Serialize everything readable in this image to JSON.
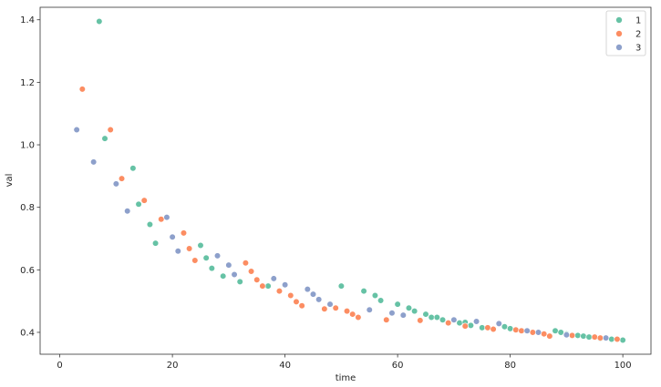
{
  "chart_data": {
    "type": "scatter",
    "xlabel": "time",
    "ylabel": "val",
    "xlim": [
      -3.5,
      105
    ],
    "ylim": [
      0.33,
      1.44
    ],
    "xticks": [
      0,
      20,
      40,
      60,
      80,
      100
    ],
    "yticks": [
      0.4,
      0.6,
      0.8,
      1.0,
      1.2,
      1.4
    ],
    "grid": false,
    "legend_position": "top-right",
    "series": [
      {
        "name": "1",
        "color": "#66c2a5",
        "points": [
          [
            7,
            1.395
          ],
          [
            8,
            1.02
          ],
          [
            13,
            0.925
          ],
          [
            14,
            0.81
          ],
          [
            16,
            0.745
          ],
          [
            17,
            0.685
          ],
          [
            25,
            0.678
          ],
          [
            26,
            0.638
          ],
          [
            27,
            0.605
          ],
          [
            29,
            0.58
          ],
          [
            32,
            0.562
          ],
          [
            37,
            0.548
          ],
          [
            50,
            0.548
          ],
          [
            54,
            0.532
          ],
          [
            56,
            0.518
          ],
          [
            57,
            0.502
          ],
          [
            60,
            0.49
          ],
          [
            62,
            0.478
          ],
          [
            63,
            0.468
          ],
          [
            65,
            0.458
          ],
          [
            66,
            0.448
          ],
          [
            67,
            0.448
          ],
          [
            68,
            0.44
          ],
          [
            71,
            0.43
          ],
          [
            72,
            0.432
          ],
          [
            73,
            0.422
          ],
          [
            75,
            0.415
          ],
          [
            79,
            0.418
          ],
          [
            80,
            0.412
          ],
          [
            88,
            0.405
          ],
          [
            89,
            0.4
          ],
          [
            90,
            0.395
          ],
          [
            92,
            0.39
          ],
          [
            93,
            0.388
          ],
          [
            94,
            0.385
          ],
          [
            96,
            0.38
          ],
          [
            98,
            0.378
          ],
          [
            100,
            0.375
          ]
        ]
      },
      {
        "name": "2",
        "color": "#fc8d62",
        "points": [
          [
            4,
            1.178
          ],
          [
            9,
            1.048
          ],
          [
            11,
            0.892
          ],
          [
            15,
            0.822
          ],
          [
            18,
            0.762
          ],
          [
            22,
            0.718
          ],
          [
            23,
            0.668
          ],
          [
            24,
            0.63
          ],
          [
            33,
            0.622
          ],
          [
            34,
            0.595
          ],
          [
            35,
            0.568
          ],
          [
            36,
            0.548
          ],
          [
            39,
            0.532
          ],
          [
            41,
            0.518
          ],
          [
            42,
            0.498
          ],
          [
            43,
            0.485
          ],
          [
            47,
            0.475
          ],
          [
            49,
            0.478
          ],
          [
            51,
            0.468
          ],
          [
            52,
            0.458
          ],
          [
            53,
            0.448
          ],
          [
            58,
            0.44
          ],
          [
            64,
            0.438
          ],
          [
            69,
            0.43
          ],
          [
            72,
            0.42
          ],
          [
            76,
            0.415
          ],
          [
            77,
            0.41
          ],
          [
            81,
            0.408
          ],
          [
            82,
            0.405
          ],
          [
            84,
            0.4
          ],
          [
            86,
            0.395
          ],
          [
            87,
            0.388
          ],
          [
            91,
            0.39
          ],
          [
            95,
            0.385
          ],
          [
            96,
            0.382
          ],
          [
            99,
            0.378
          ]
        ]
      },
      {
        "name": "3",
        "color": "#8da0cb",
        "points": [
          [
            3,
            1.048
          ],
          [
            6,
            0.945
          ],
          [
            10,
            0.875
          ],
          [
            12,
            0.788
          ],
          [
            19,
            0.768
          ],
          [
            20,
            0.705
          ],
          [
            21,
            0.66
          ],
          [
            28,
            0.645
          ],
          [
            30,
            0.615
          ],
          [
            31,
            0.585
          ],
          [
            38,
            0.572
          ],
          [
            40,
            0.552
          ],
          [
            44,
            0.538
          ],
          [
            45,
            0.522
          ],
          [
            46,
            0.505
          ],
          [
            48,
            0.49
          ],
          [
            55,
            0.472
          ],
          [
            59,
            0.462
          ],
          [
            61,
            0.455
          ],
          [
            70,
            0.44
          ],
          [
            74,
            0.435
          ],
          [
            78,
            0.428
          ],
          [
            83,
            0.405
          ],
          [
            85,
            0.4
          ],
          [
            90,
            0.392
          ],
          [
            97,
            0.382
          ]
        ]
      }
    ]
  }
}
